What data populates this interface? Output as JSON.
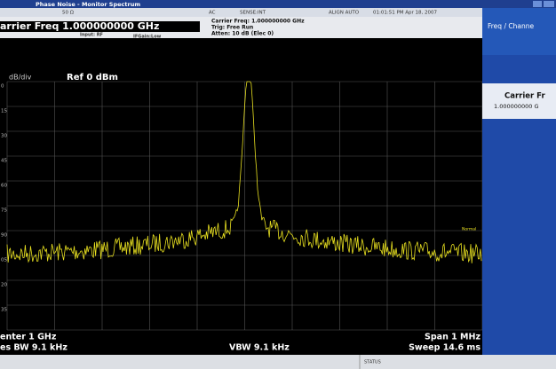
{
  "window": {
    "title": "Phase Noise - Monitor Spectrum"
  },
  "status_line": {
    "impedance": "50 Ω",
    "coupling": "AC",
    "sense": "SENSE:INT",
    "align": "ALIGN AUTO",
    "timestamp": "01:01:51 PM Apr 18, 2007"
  },
  "info": {
    "carrier_freq": "arrier Freq  1.000000000 GHz",
    "input": "Input: RF",
    "if_gain": "IFGain:Low",
    "carrier_detail": "Carrier Freq: 1.000000000 GHz",
    "trig": "Trig: Free Run",
    "atten": "Atten: 10 dB (Elec 0)"
  },
  "display": {
    "scale": "dB/div",
    "ref": "Ref  0 dBm",
    "y_labels": [
      "0",
      "15",
      "30",
      "45",
      "60",
      "75",
      "90",
      "05",
      "20",
      "35"
    ],
    "detector": "Normal",
    "footer": {
      "center": "enter 1 GHz",
      "res_bw": "es BW  9.1 kHz",
      "vbw": "VBW  9.1 kHz",
      "span": "Span 1 MHz",
      "sweep": "Sweep  14.6 ms"
    }
  },
  "menu": {
    "title": "Freq / Channe",
    "softkey_label": "Carrier Fr",
    "softkey_value": "1.000000000 G"
  },
  "status_bar": {
    "label": "STATUS"
  }
}
